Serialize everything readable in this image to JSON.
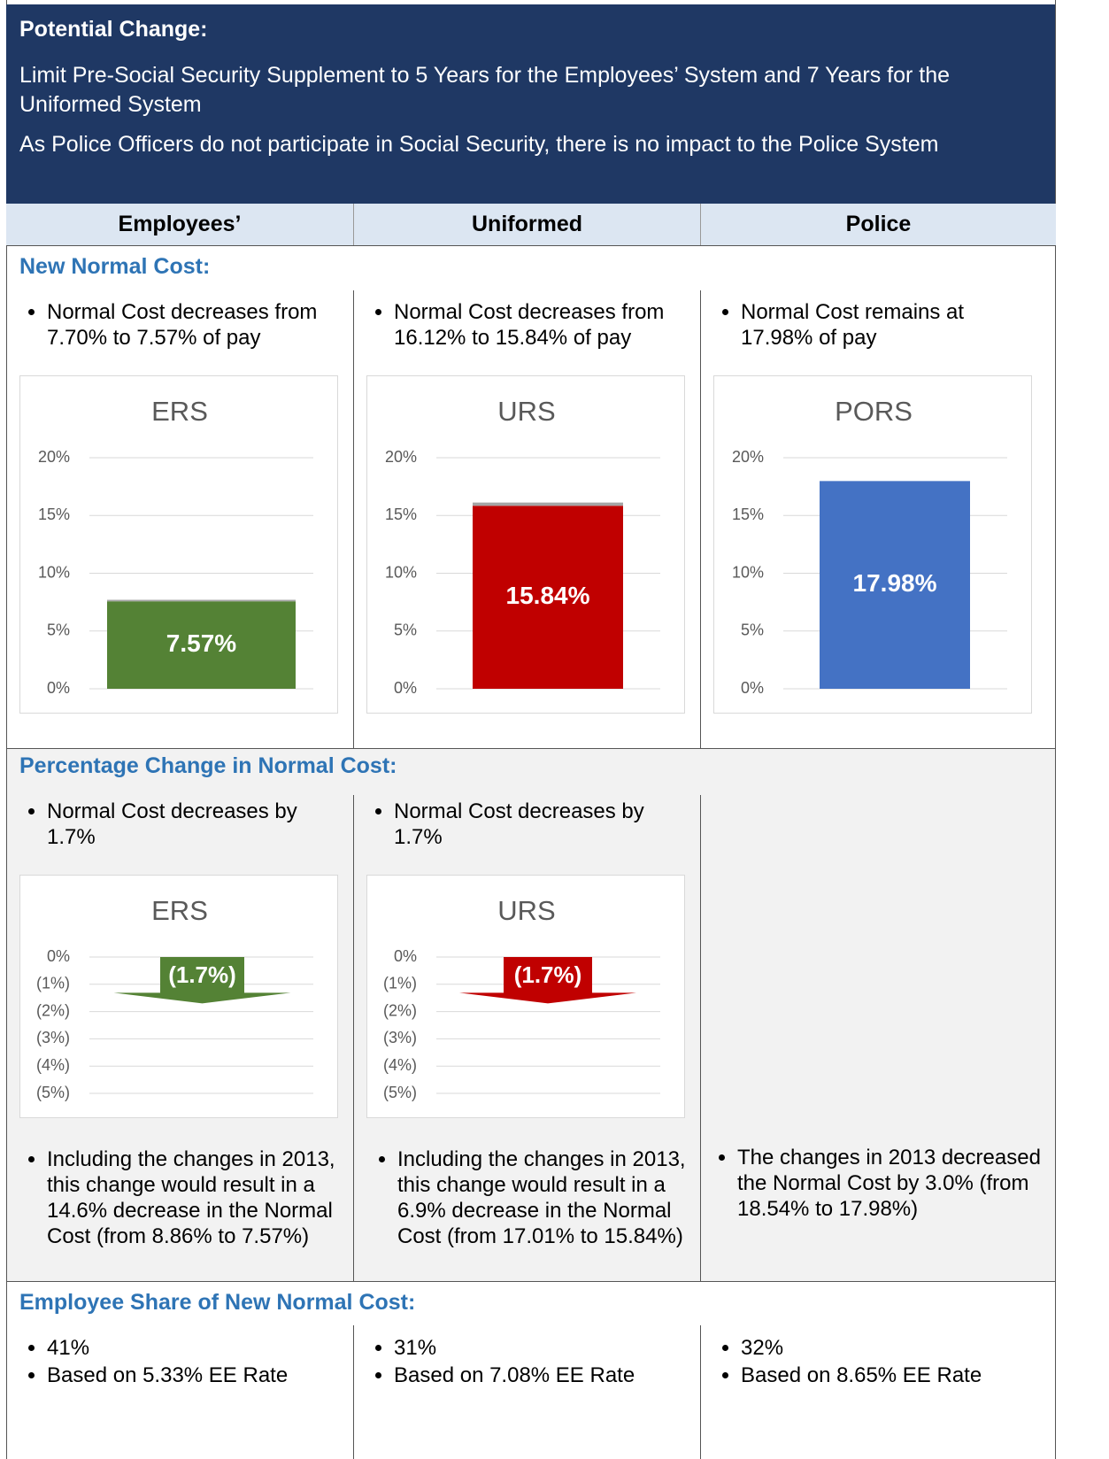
{
  "header": {
    "title": "Potential Change:",
    "paragraphs": [
      "Limit Pre-Social Security Supplement to 5 Years for the Employees’ System and 7 Years for the Uniformed System",
      "As Police Officers do not participate in Social Security, there is no impact to the Police System"
    ]
  },
  "columns": [
    "Employees’",
    "Uniformed",
    "Police"
  ],
  "sections": [
    {
      "title": "New Normal Cost:",
      "cells": [
        {
          "bullets": [
            "Normal Cost decreases from 7.70% to 7.57% of pay"
          ],
          "chart": {
            "type": "bar",
            "title": "ERS",
            "ylim": [
              0,
              20
            ],
            "yticks": [
              {
                "value": 0,
                "label": "0%"
              },
              {
                "value": 5,
                "label": "5%"
              },
              {
                "value": 10,
                "label": "10%"
              },
              {
                "value": 15,
                "label": "15%"
              },
              {
                "value": 20,
                "label": "20%"
              }
            ],
            "grid": true,
            "series": [
              {
                "color": "#548235",
                "values": [
                  7.57
                ],
                "value_labels": [
                  "7.57%"
                ]
              },
              {
                "color": "#a5a5a5",
                "values": [
                  0.13
                ]
              }
            ]
          }
        },
        {
          "bullets": [
            "Normal Cost decreases from 16.12% to 15.84% of pay"
          ],
          "chart": {
            "type": "bar",
            "title": "URS",
            "ylim": [
              0,
              20
            ],
            "yticks": [
              {
                "value": 0,
                "label": "0%"
              },
              {
                "value": 5,
                "label": "5%"
              },
              {
                "value": 10,
                "label": "10%"
              },
              {
                "value": 15,
                "label": "15%"
              },
              {
                "value": 20,
                "label": "20%"
              }
            ],
            "grid": true,
            "series": [
              {
                "color": "#c00000",
                "values": [
                  15.84
                ],
                "value_labels": [
                  "15.84%"
                ]
              },
              {
                "color": "#a5a5a5",
                "values": [
                  0.28
                ]
              }
            ]
          }
        },
        {
          "bullets": [
            "Normal Cost remains at 17.98% of pay"
          ],
          "chart": {
            "type": "bar",
            "title": "PORS",
            "ylim": [
              0,
              20
            ],
            "yticks": [
              {
                "value": 0,
                "label": "0%"
              },
              {
                "value": 5,
                "label": "5%"
              },
              {
                "value": 10,
                "label": "10%"
              },
              {
                "value": 15,
                "label": "15%"
              },
              {
                "value": 20,
                "label": "20%"
              }
            ],
            "grid": true,
            "series": [
              {
                "color": "#4472c4",
                "values": [
                  17.98
                ],
                "value_labels": [
                  "17.98%"
                ]
              }
            ]
          }
        }
      ]
    },
    {
      "title": "Percentage Change in Normal Cost:",
      "cells": [
        {
          "bullets": [
            "Normal Cost decreases by 1.7%"
          ],
          "chart": {
            "type": "arrow",
            "title": "ERS",
            "ylim": [
              -5,
              0
            ],
            "yticks": [
              {
                "value": 0,
                "label": "0%"
              },
              {
                "value": -1,
                "label": "(1%)"
              },
              {
                "value": -2,
                "label": "(2%)"
              },
              {
                "value": -3,
                "label": "(3%)"
              },
              {
                "value": -4,
                "label": "(4%)"
              },
              {
                "value": -5,
                "label": "(5%)"
              }
            ],
            "grid": true,
            "series": [
              {
                "color": "#548235",
                "values": [
                  -1.7
                ],
                "value_labels": [
                  "(1.7%)"
                ]
              }
            ]
          },
          "notes": [
            "Including the changes in 2013, this change would result in a 14.6% decrease in the Normal Cost (from 8.86% to 7.57%)"
          ]
        },
        {
          "bullets": [
            "Normal Cost decreases by 1.7%"
          ],
          "chart": {
            "type": "arrow",
            "title": "URS",
            "ylim": [
              -5,
              0
            ],
            "yticks": [
              {
                "value": 0,
                "label": "0%"
              },
              {
                "value": -1,
                "label": "(1%)"
              },
              {
                "value": -2,
                "label": "(2%)"
              },
              {
                "value": -3,
                "label": "(3%)"
              },
              {
                "value": -4,
                "label": "(4%)"
              },
              {
                "value": -5,
                "label": "(5%)"
              }
            ],
            "grid": true,
            "series": [
              {
                "color": "#c00000",
                "values": [
                  -1.7
                ],
                "value_labels": [
                  "(1.7%)"
                ]
              }
            ]
          },
          "notes": [
            "Including the changes in 2013, this change would result in a 6.9% decrease in the Normal Cost (from 17.01% to 15.84%)"
          ]
        },
        {
          "notes": [
            "The changes in 2013 decreased the Normal Cost by 3.0% (from 18.54% to 17.98%)"
          ]
        }
      ]
    },
    {
      "title": "Employee Share of New Normal Cost:",
      "cells": [
        {
          "bullets": [
            "41%",
            "Based on 5.33% EE Rate"
          ]
        },
        {
          "bullets": [
            "31%",
            "Based on 7.08% EE Rate"
          ]
        },
        {
          "bullets": [
            "32%",
            "Based on 8.65% EE Rate"
          ]
        }
      ]
    }
  ]
}
